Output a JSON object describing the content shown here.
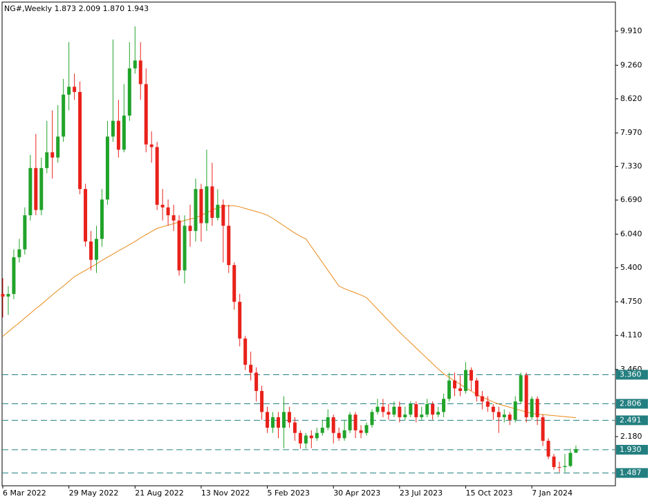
{
  "chart_data": {
    "type": "candlestick",
    "title": "NG#,Weekly  1.873 2.009 1.870 1.943",
    "categories": [
      "6 Mar 2022",
      null,
      null,
      null,
      null,
      null,
      null,
      null,
      null,
      null,
      null,
      null,
      "29 May 2022",
      null,
      null,
      null,
      null,
      null,
      null,
      null,
      null,
      null,
      null,
      null,
      "21 Aug 2022",
      null,
      null,
      null,
      null,
      null,
      null,
      null,
      null,
      null,
      null,
      null,
      "13 Nov 2022",
      null,
      null,
      null,
      null,
      null,
      null,
      null,
      null,
      null,
      null,
      null,
      "5 Feb 2023",
      null,
      null,
      null,
      null,
      null,
      null,
      null,
      null,
      null,
      null,
      null,
      "30 Apr 2023",
      null,
      null,
      null,
      null,
      null,
      null,
      null,
      null,
      null,
      null,
      null,
      "23 Jul 2023",
      null,
      null,
      null,
      null,
      null,
      null,
      null,
      null,
      null,
      null,
      null,
      "15 Oct 2023",
      null,
      null,
      null,
      null,
      null,
      null,
      null,
      null,
      null,
      null,
      null,
      "7 Jan 2024",
      null,
      null,
      null,
      null,
      null,
      null,
      null,
      null
    ],
    "open": [
      4.9,
      4.85,
      4.9,
      5.6,
      5.75,
      6.4,
      7.3,
      6.5,
      7.3,
      7.6,
      7.5,
      7.9,
      8.7,
      8.85,
      8.75,
      6.9,
      5.9,
      5.55,
      5.95,
      6.7,
      7.9,
      8.2,
      7.65,
      8.3,
      9.2,
      9.35,
      8.9,
      7.75,
      7.7,
      6.6,
      6.55,
      6.4,
      6.3,
      5.35,
      6.2,
      6.1,
      6.9,
      6.25,
      6.95,
      6.35,
      6.6,
      6.2,
      5.45,
      4.75,
      4.05,
      3.55,
      3.4,
      3.05,
      2.65,
      2.35,
      2.55,
      2.35,
      2.65,
      2.45,
      2.25,
      2.05,
      2.2,
      2.15,
      2.25,
      2.35,
      2.55,
      2.25,
      2.15,
      2.3,
      2.6,
      2.3,
      2.25,
      2.4,
      2.65,
      2.75,
      2.65,
      2.6,
      2.75,
      2.55,
      2.6,
      2.8,
      2.55,
      2.6,
      2.8,
      2.6,
      2.65,
      2.9,
      3.25,
      3.1,
      3.05,
      3.45,
      3.25,
      2.95,
      2.85,
      2.75,
      2.65,
      2.55,
      2.6,
      2.5,
      2.85,
      3.35,
      2.55,
      2.9,
      2.55,
      2.1,
      1.8,
      1.6,
      1.6,
      1.62,
      1.873
    ],
    "high": [
      5.2,
      5.05,
      5.75,
      5.95,
      6.55,
      7.55,
      7.95,
      7.5,
      8.2,
      8.4,
      8.5,
      9.0,
      9.7,
      9.1,
      8.95,
      7.0,
      6.1,
      6.2,
      6.9,
      8.2,
      9.75,
      8.6,
      8.9,
      9.7,
      10.0,
      9.7,
      9.2,
      8.0,
      7.8,
      6.9,
      6.7,
      6.6,
      6.4,
      6.4,
      6.6,
      7.1,
      7.0,
      7.65,
      7.4,
      6.9,
      6.7,
      6.6,
      5.5,
      4.9,
      4.1,
      3.8,
      3.5,
      3.15,
      2.75,
      2.65,
      2.65,
      2.95,
      2.75,
      2.55,
      2.3,
      2.25,
      2.3,
      2.35,
      2.5,
      2.7,
      2.6,
      2.35,
      2.5,
      2.65,
      2.65,
      2.4,
      2.45,
      2.7,
      2.9,
      2.9,
      2.8,
      2.85,
      2.85,
      2.75,
      2.85,
      2.85,
      2.75,
      2.9,
      2.85,
      2.75,
      3.0,
      3.4,
      3.4,
      3.35,
      3.6,
      3.5,
      3.3,
      3.05,
      2.95,
      2.8,
      2.75,
      2.7,
      2.65,
      2.95,
      3.4,
      3.4,
      2.95,
      2.95,
      2.6,
      2.15,
      1.85,
      1.7,
      1.85,
      1.95,
      2.009
    ],
    "low": [
      4.45,
      4.5,
      4.8,
      5.5,
      5.65,
      6.3,
      6.4,
      6.4,
      7.2,
      7.1,
      7.4,
      7.8,
      8.4,
      8.6,
      6.8,
      5.8,
      5.35,
      5.3,
      5.8,
      6.6,
      7.8,
      7.5,
      7.6,
      8.2,
      9.1,
      8.6,
      7.6,
      7.4,
      6.5,
      6.3,
      6.2,
      6.1,
      5.25,
      5.1,
      5.8,
      5.9,
      5.9,
      6.1,
      6.2,
      6.3,
      5.5,
      5.3,
      4.6,
      3.9,
      3.45,
      3.25,
      2.85,
      2.5,
      2.25,
      2.25,
      2.15,
      1.96,
      2.35,
      2.1,
      1.95,
      1.95,
      1.96,
      2.1,
      2.2,
      2.3,
      2.05,
      2.1,
      2.1,
      2.25,
      2.15,
      2.15,
      2.2,
      2.35,
      2.6,
      2.55,
      2.5,
      2.55,
      2.45,
      2.5,
      2.55,
      2.45,
      2.5,
      2.55,
      2.5,
      2.55,
      2.55,
      2.85,
      2.95,
      2.95,
      3.0,
      3.05,
      2.85,
      2.7,
      2.65,
      2.5,
      2.25,
      2.45,
      2.4,
      2.45,
      2.8,
      2.45,
      2.5,
      2.4,
      2.0,
      1.75,
      1.55,
      1.5,
      1.5,
      1.6,
      1.87
    ],
    "close": [
      4.85,
      4.9,
      5.6,
      5.75,
      6.4,
      7.3,
      6.5,
      7.3,
      7.6,
      7.5,
      7.9,
      8.7,
      8.85,
      8.75,
      6.9,
      5.9,
      5.55,
      5.95,
      6.7,
      7.9,
      8.2,
      7.65,
      8.3,
      9.2,
      9.35,
      8.9,
      7.75,
      7.7,
      6.6,
      6.55,
      6.4,
      6.3,
      5.35,
      6.2,
      6.1,
      6.9,
      6.25,
      6.95,
      6.35,
      6.6,
      6.2,
      5.45,
      4.75,
      4.05,
      3.55,
      3.4,
      3.05,
      2.65,
      2.35,
      2.55,
      2.35,
      2.65,
      2.45,
      2.25,
      2.05,
      2.2,
      2.15,
      2.25,
      2.35,
      2.55,
      2.25,
      2.15,
      2.3,
      2.6,
      2.3,
      2.25,
      2.4,
      2.65,
      2.75,
      2.65,
      2.6,
      2.75,
      2.55,
      2.6,
      2.8,
      2.55,
      2.6,
      2.8,
      2.6,
      2.65,
      2.9,
      3.25,
      3.1,
      3.05,
      3.45,
      3.25,
      2.95,
      2.85,
      2.75,
      2.65,
      2.55,
      2.6,
      2.5,
      2.85,
      3.35,
      2.55,
      2.9,
      2.55,
      2.1,
      1.8,
      1.6,
      1.6,
      1.62,
      1.87,
      1.943
    ],
    "up_color": "#21a32a",
    "down_color": "#e8211a",
    "moving_average": {
      "color": "#e88a1a",
      "values": [
        4.09,
        4.18,
        4.27,
        4.35,
        4.44,
        4.53,
        4.62,
        4.7,
        4.79,
        4.88,
        4.97,
        5.05,
        5.14,
        5.23,
        5.29,
        5.35,
        5.41,
        5.47,
        5.54,
        5.6,
        5.66,
        5.72,
        5.78,
        5.84,
        5.9,
        5.97,
        6.03,
        6.09,
        6.15,
        6.18,
        6.21,
        6.24,
        6.27,
        6.3,
        6.33,
        6.35,
        6.4,
        6.45,
        6.5,
        6.54,
        6.57,
        6.58,
        6.58,
        6.56,
        6.53,
        6.5,
        6.47,
        6.44,
        6.4,
        6.34,
        6.27,
        6.2,
        6.13,
        6.06,
        6.0,
        5.95,
        5.8,
        5.65,
        5.5,
        5.35,
        5.2,
        5.05,
        5.0,
        4.96,
        4.92,
        4.88,
        4.83,
        4.72,
        4.61,
        4.5,
        4.39,
        4.28,
        4.17,
        4.07,
        3.97,
        3.87,
        3.77,
        3.67,
        3.57,
        3.47,
        3.38,
        3.31,
        3.24,
        3.18,
        3.11,
        3.05,
        2.98,
        2.93,
        2.89,
        2.84,
        2.8,
        2.77,
        2.74,
        2.71,
        2.68,
        2.65,
        2.62,
        2.61,
        2.6,
        2.59,
        2.58,
        2.57,
        2.56,
        2.55,
        2.54
      ]
    },
    "levels": [
      {
        "value": 3.36,
        "label": "3.360"
      },
      {
        "value": 2.806,
        "label": "2.806"
      },
      {
        "value": 2.491,
        "label": "2.491"
      },
      {
        "value": 1.93,
        "label": "1.930"
      },
      {
        "value": 1.487,
        "label": "1.487"
      }
    ],
    "level_color": "#237f80",
    "ylim": [
      1.243,
      10.464
    ],
    "yticks": [
      {
        "value": 9.91,
        "label": "9.910"
      },
      {
        "value": 9.26,
        "label": "9.260"
      },
      {
        "value": 8.62,
        "label": "8.620"
      },
      {
        "value": 7.97,
        "label": "7.970"
      },
      {
        "value": 7.33,
        "label": "7.330"
      },
      {
        "value": 6.69,
        "label": "6.690"
      },
      {
        "value": 6.04,
        "label": "6.040"
      },
      {
        "value": 5.4,
        "label": "5.400"
      },
      {
        "value": 4.75,
        "label": "4.750"
      },
      {
        "value": 4.11,
        "label": "4.110"
      },
      {
        "value": 3.46,
        "label": "3.460"
      },
      {
        "value": 2.18,
        "label": "2.180"
      }
    ]
  }
}
